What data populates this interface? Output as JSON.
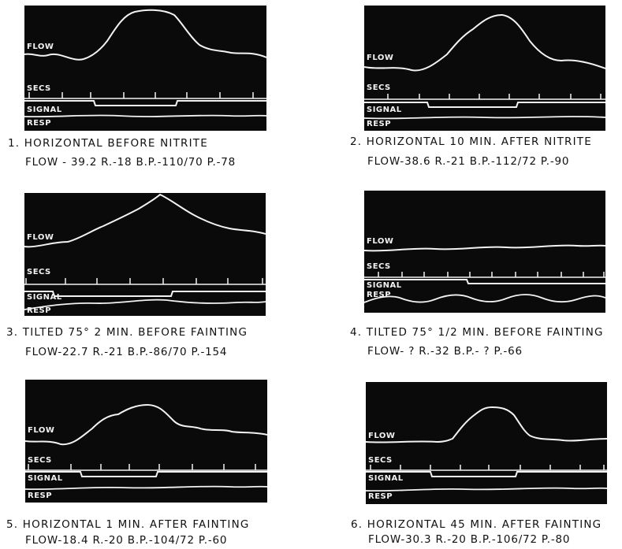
{
  "trace_labels": {
    "flow": "FLOW",
    "secs": "SECS",
    "signal": "SIGNAL",
    "resp": "RESP"
  },
  "panels": [
    {
      "caption": "1.  HORIZONTAL  BEFORE  NITRITE",
      "stats": "FLOW - 39.2   R.-18   B.P.-110/70   P.-78"
    },
    {
      "caption": "2.  HORIZONTAL  10  MIN.  AFTER  NITRITE",
      "stats": "FLOW-38.6   R.-21   B.P.-112/72   P.-90"
    },
    {
      "caption": "3.  TILTED  75° 2  MIN.  BEFORE  FAINTING",
      "stats": "FLOW-22.7   R.-21   B.P.-86/70   P.-154"
    },
    {
      "caption": "4.  TILTED  75° 1/2 MIN.  BEFORE  FAINTING",
      "stats": "FLOW- ?   R.-32   B.P.- ?   P.-66"
    },
    {
      "caption": "5.  HORIZONTAL  1  MIN.  AFTER  FAINTING",
      "stats": "FLOW-18.4   R.-20   B.P.-104/72   P.-60"
    },
    {
      "caption": "6.  HORIZONTAL  45  MIN.  AFTER  FAINTING",
      "stats": "FLOW-30.3   R.-20   B.P.-106/72   P.-80"
    }
  ],
  "colors": {
    "panel_background": "#0a0a0a",
    "trace": "#f2f2f2"
  }
}
